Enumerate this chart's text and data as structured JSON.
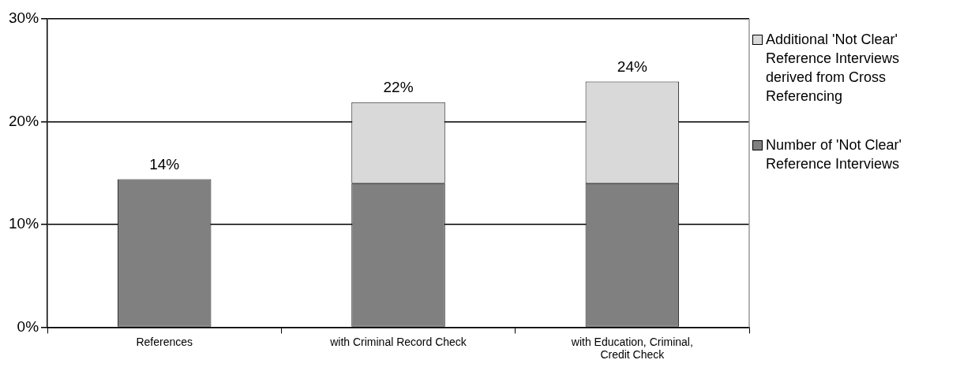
{
  "chart_data": {
    "type": "bar",
    "stacked": true,
    "categories": [
      "References",
      "with Criminal Record Check",
      "with Education, Criminal, Credit Check"
    ],
    "series": [
      {
        "name": "Number of 'Not Clear' Reference Interviews",
        "color": "#808080",
        "values": [
          14.4,
          14,
          14
        ]
      },
      {
        "name": "Additional 'Not Clear' Reference Interviews derived from Cross Referencing",
        "color": "#d9d9d9",
        "values": [
          null,
          7.9,
          9.9
        ]
      }
    ],
    "totals": [
      "14%",
      "22%",
      "24%"
    ],
    "ylim": [
      0,
      30
    ],
    "yticks": [
      {
        "value": 0,
        "label": "0%"
      },
      {
        "value": 10,
        "label": "10%"
      },
      {
        "value": 20,
        "label": "20%"
      },
      {
        "value": 30,
        "label": "30%"
      }
    ],
    "grid": "y",
    "legend": "right"
  }
}
